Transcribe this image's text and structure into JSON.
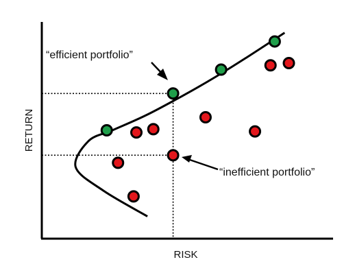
{
  "chart_data": {
    "type": "scatter",
    "xlabel": "RISK",
    "ylabel": "RETURN",
    "xlim": [
      0,
      10
    ],
    "ylim": [
      0,
      10
    ],
    "grid": false,
    "frontier": [
      [
        3.74,
        1.03
      ],
      [
        2.2,
        2.2
      ],
      [
        1.2,
        3.3
      ],
      [
        1.65,
        4.5
      ],
      [
        2.5,
        5.0
      ],
      [
        3.7,
        5.7
      ],
      [
        5.0,
        6.6
      ],
      [
        6.2,
        7.5
      ],
      [
        7.3,
        8.4
      ],
      [
        8.6,
        9.5
      ]
    ],
    "efficient_points": [
      [
        2.3,
        5.0
      ],
      [
        4.65,
        6.7
      ],
      [
        6.35,
        7.8
      ],
      [
        8.25,
        9.1
      ]
    ],
    "inefficient_points": [
      [
        3.35,
        4.9
      ],
      [
        3.95,
        5.05
      ],
      [
        4.65,
        3.85
      ],
      [
        5.8,
        5.6
      ],
      [
        7.55,
        4.95
      ],
      [
        8.1,
        8.0
      ],
      [
        8.75,
        8.1
      ],
      [
        2.7,
        3.5
      ],
      [
        3.25,
        1.95
      ]
    ],
    "reference_lines": {
      "efficient_x": 4.65,
      "efficient_y": 6.7,
      "inefficient_y": 3.85
    },
    "colors": {
      "efficient": "#1f9e4a",
      "inefficient": "#e3171c",
      "outline": "#000000"
    },
    "annotations": [
      {
        "text": "“efficient portfolio”",
        "target": "efficient_point"
      },
      {
        "text": "“inefficient portfolio”",
        "target": "inefficient_point"
      }
    ]
  }
}
